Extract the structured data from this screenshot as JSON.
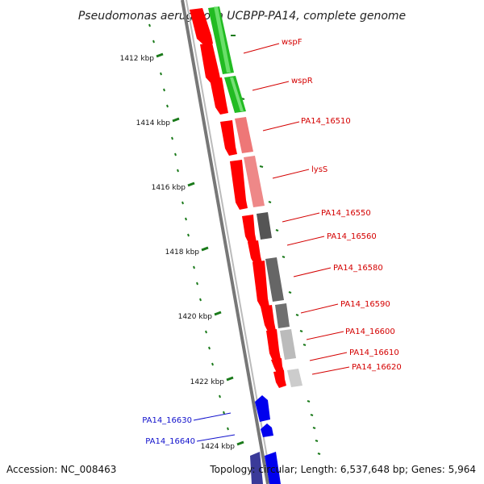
{
  "title": "Pseudomonas aeruginosa UCBPP-PA14, complete genome",
  "ticks": [
    "1412 kbp",
    "1414 kbp",
    "1416 kbp",
    "1418 kbp",
    "1420 kbp",
    "1422 kbp",
    "1424 kbp"
  ],
  "genes_forward": [
    {
      "label": "wspF",
      "color": "#d40000"
    },
    {
      "label": "wspR",
      "color": "#d40000"
    },
    {
      "label": "PA14_16510",
      "color": "#d40000"
    },
    {
      "label": "lysS",
      "color": "#d40000"
    },
    {
      "label": "PA14_16550",
      "color": "#d40000"
    },
    {
      "label": "PA14_16560",
      "color": "#d40000"
    },
    {
      "label": "PA14_16580",
      "color": "#d40000"
    },
    {
      "label": "PA14_16590",
      "color": "#d40000"
    },
    {
      "label": "PA14_16600",
      "color": "#d40000"
    },
    {
      "label": "PA14_16610",
      "color": "#d40000"
    },
    {
      "label": "PA14_16620",
      "color": "#d40000"
    }
  ],
  "genes_reverse": [
    {
      "label": "PA14_16630",
      "color": "#1010cc"
    },
    {
      "label": "PA14_16640",
      "color": "#1010cc"
    }
  ],
  "footer": {
    "accession": "Accession: NC_008463",
    "topology": "Topology: circular; Length: 6,537,648 bp; Genes: 5,964"
  },
  "colors": {
    "gene_forward": "#ff0000",
    "gene_reverse": "#0000ff",
    "cog_green": "#33cc33",
    "tick_green": "#1a7a1a",
    "backbone": "#888888"
  }
}
